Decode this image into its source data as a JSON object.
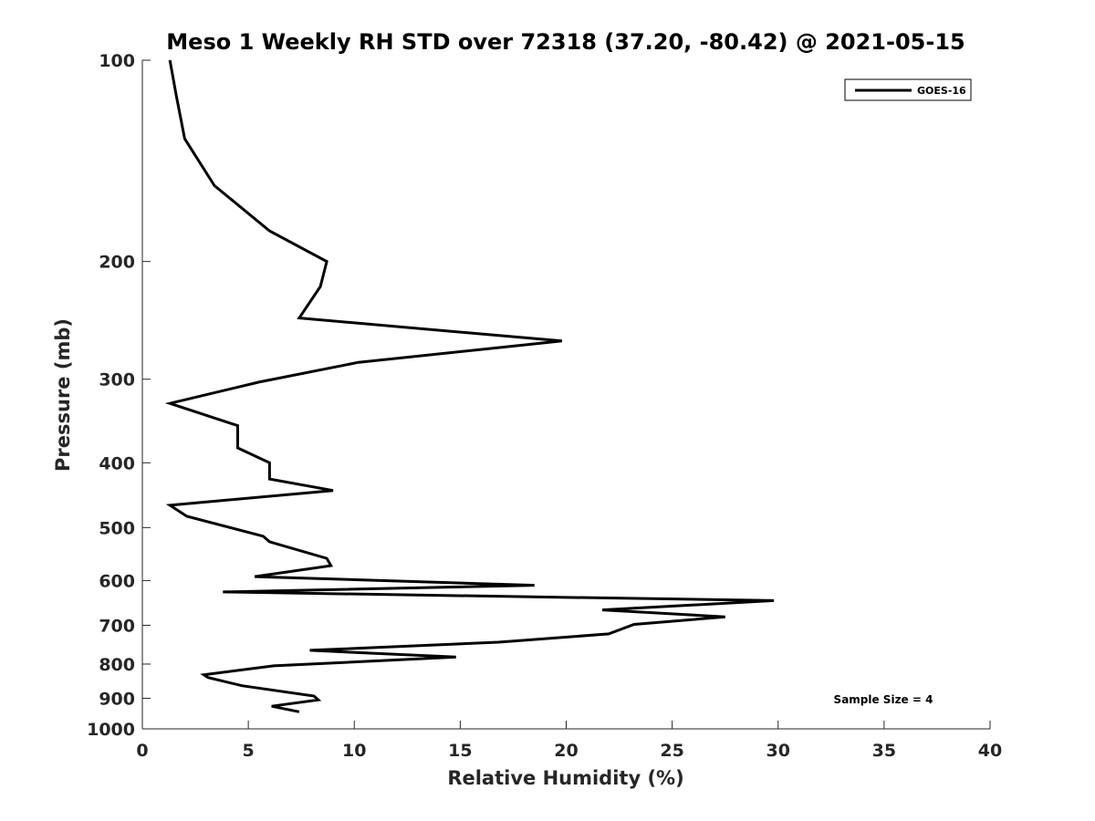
{
  "chart_data": {
    "type": "line",
    "title": "Meso 1 Weekly RH STD over 72318 (37.20, -80.42) @ 2021-05-15",
    "xlabel": "Relative Humidity (%)",
    "ylabel": "Pressure (mb)",
    "xlim": [
      0,
      40
    ],
    "ylim": [
      100,
      1000
    ],
    "yscale": "log",
    "y_reversed": true,
    "grid": false,
    "legend_position": "top-right",
    "x_ticks": [
      "0",
      "5",
      "10",
      "15",
      "20",
      "25",
      "30",
      "35",
      "40"
    ],
    "y_ticks": [
      "100",
      "200",
      "300",
      "400",
      "500",
      "600",
      "700",
      "800",
      "900",
      "1000"
    ],
    "annotation": "Sample Size = 4",
    "series": [
      {
        "name": "GOES-16",
        "color": "#000000",
        "x": [
          1.3,
          1.6,
          2.0,
          3.4,
          6.0,
          8.7,
          8.4,
          7.4,
          19.8,
          10.2,
          5.5,
          1.3,
          4.5,
          4.5,
          4.5,
          6.0,
          6.0,
          9.0,
          1.3,
          2.1,
          5.7,
          6.0,
          8.7,
          8.9,
          5.3,
          18.5,
          3.8,
          29.8,
          21.7,
          27.5,
          23.2,
          22.0,
          16.8,
          7.9,
          14.8,
          6.2,
          2.9,
          3.1,
          4.7,
          8.1,
          8.3,
          6.1,
          7.4
        ],
        "y": [
          100,
          113,
          131,
          154,
          180,
          200,
          218,
          243,
          263,
          283,
          303,
          326,
          352,
          363,
          380,
          400,
          423,
          440,
          463,
          481,
          515,
          525,
          556,
          570,
          592,
          610,
          624,
          643,
          664,
          680,
          698,
          721,
          742,
          763,
          781,
          805,
          830,
          838,
          862,
          893,
          905,
          925,
          943
        ]
      }
    ]
  }
}
